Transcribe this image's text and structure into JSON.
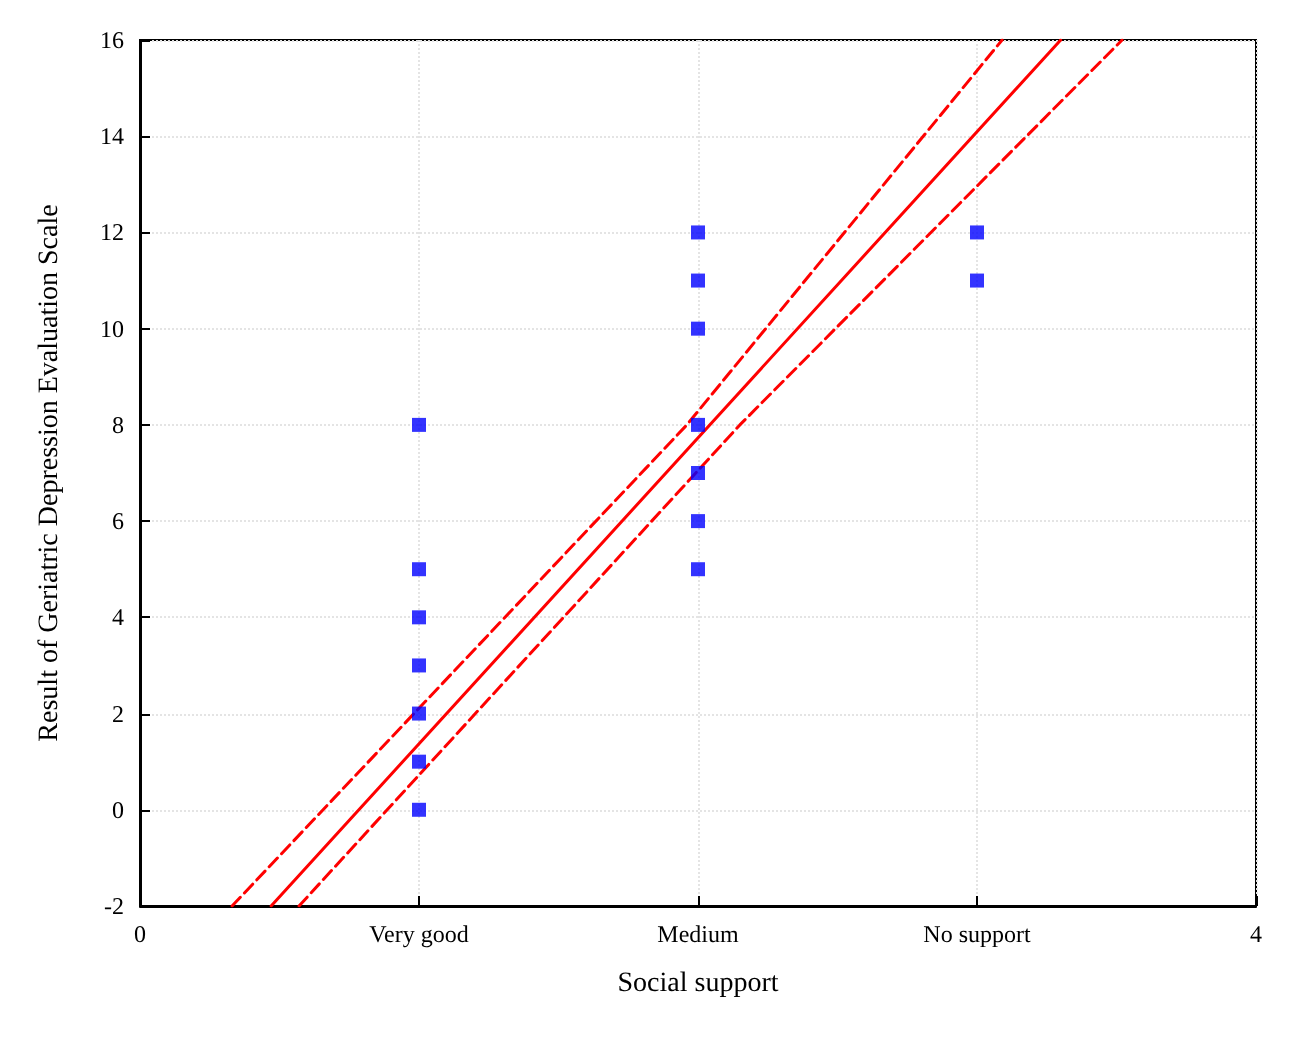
{
  "chart_data": {
    "type": "scatter",
    "xlabel": "Social support",
    "ylabel": "Result of Geriatric Depression Evaluation Scale",
    "xlim": [
      0,
      4
    ],
    "xticks": [
      0,
      {
        "value": 1,
        "label": "Very good"
      },
      {
        "value": 2,
        "label": "Medium"
      },
      {
        "value": 3,
        "label": "No support"
      },
      4
    ],
    "ylim": [
      -2,
      16
    ],
    "yticks": [
      -2,
      0,
      2,
      4,
      6,
      8,
      10,
      12,
      14,
      16
    ],
    "grid": true,
    "series": [
      {
        "color": "#0000ff",
        "marker": "square",
        "x": [
          1,
          1,
          1,
          1,
          1,
          1,
          1,
          2,
          2,
          2,
          2,
          2,
          2,
          2,
          3,
          3
        ],
        "values": [
          0,
          1,
          2,
          3,
          4,
          5,
          8,
          5,
          6,
          7,
          8,
          10,
          11,
          12,
          11,
          12
        ]
      },
      {
        "type": "line",
        "color": "#ff0000",
        "marker": "none",
        "line_style": "solid",
        "x": [
          0.47,
          3.3
        ],
        "values": [
          -2,
          16
        ]
      },
      {
        "type": "line",
        "color": "#ff0000",
        "marker": "none",
        "line_style": "dashed",
        "x": [
          0.33,
          1.96,
          3.09
        ],
        "values": [
          -2,
          8,
          16
        ]
      },
      {
        "type": "line",
        "color": "#ff0000",
        "marker": "none",
        "line_style": "dashed",
        "x": [
          0.57,
          2.15,
          3.52
        ],
        "values": [
          -2,
          8,
          16
        ]
      }
    ]
  }
}
